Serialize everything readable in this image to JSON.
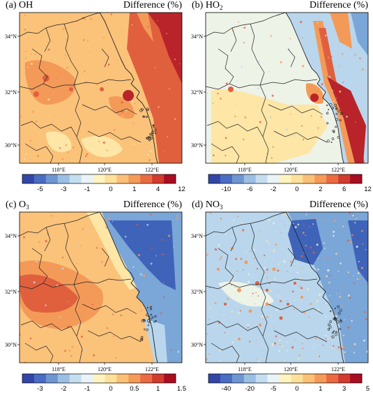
{
  "panels": [
    {
      "label": "(a) OH",
      "species": "OH",
      "diff_label": "Difference (%)",
      "colorbar": {
        "colors": [
          "#3346a8",
          "#4a6cc2",
          "#6f95d2",
          "#9bbfe3",
          "#c4def0",
          "#eaf3f7",
          "#fff3c0",
          "#fde09a",
          "#fbbf76",
          "#f59a58",
          "#ea6a42",
          "#d23b2e",
          "#a80d22"
        ],
        "tick_labels": [
          "-5",
          "-3",
          "-1",
          "0",
          "1",
          "4",
          "12"
        ]
      }
    },
    {
      "label": "(b) HO",
      "species": "HO2",
      "sub": "2",
      "diff_label": "Difference (%)",
      "colorbar": {
        "colors": [
          "#3346a8",
          "#4a6cc2",
          "#6f95d2",
          "#9bbfe3",
          "#c4def0",
          "#eaf3f7",
          "#fff3c0",
          "#fde09a",
          "#fbbf76",
          "#f59a58",
          "#ea6a42",
          "#d23b2e",
          "#a80d22"
        ],
        "tick_labels": [
          "-10",
          "-6",
          "-2",
          "0",
          "2",
          "6",
          "12"
        ]
      }
    },
    {
      "label": "(c) O",
      "species": "O3",
      "sub": "3",
      "diff_label": "Difference (%)",
      "colorbar": {
        "colors": [
          "#3346a8",
          "#4a6cc2",
          "#6f95d2",
          "#9bbfe3",
          "#c4def0",
          "#eaf3f7",
          "#fff3c0",
          "#fde09a",
          "#fbbf76",
          "#f59a58",
          "#ea6a42",
          "#d23b2e",
          "#a80d22"
        ],
        "tick_labels": [
          "-3",
          "-2",
          "-1",
          "0",
          "0.5",
          "1",
          "1.5"
        ]
      }
    },
    {
      "label": "(d) NO",
      "species": "NO3",
      "sub": "3",
      "diff_label": "Difference (%)",
      "colorbar": {
        "colors": [
          "#3346a8",
          "#4a6cc2",
          "#6f95d2",
          "#9bbfe3",
          "#c4def0",
          "#eaf3f7",
          "#fff3c0",
          "#fde09a",
          "#fbbf76",
          "#f59a58",
          "#ea6a42",
          "#d23b2e",
          "#a80d22"
        ],
        "tick_labels": [
          "-40",
          "-20",
          "-5",
          "0",
          "1",
          "3",
          "5"
        ]
      }
    }
  ],
  "axes": {
    "lat_ticks": [
      "34°N",
      "32°N",
      "30°N"
    ],
    "lon_ticks": [
      "118°E",
      "120°E",
      "122°E"
    ]
  },
  "palette": {
    "blue_dark": "#3f63b8",
    "blue_mid": "#7aa6d8",
    "blue_light": "#b9d6ec",
    "pale": "#eef3e8",
    "yellow": "#fde6a6",
    "orange_light": "#fbc27a",
    "orange": "#f49a58",
    "red": "#e0603e",
    "dark_red": "#b8242a",
    "boundary": "#222222"
  }
}
